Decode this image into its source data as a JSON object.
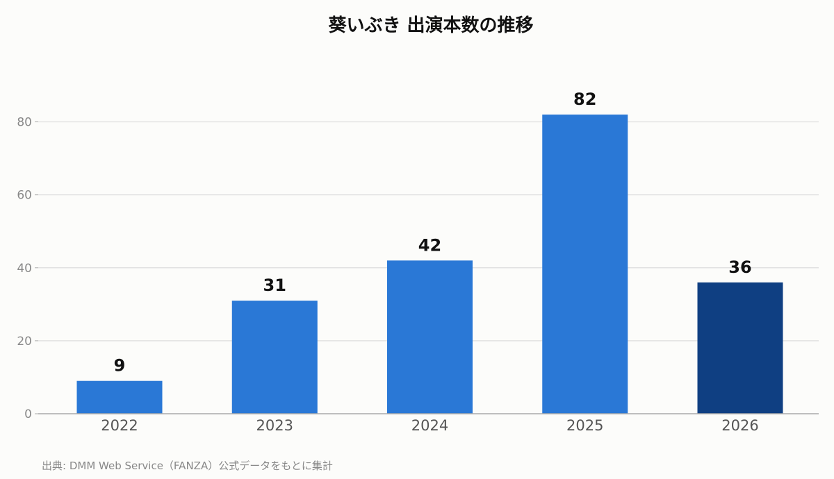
{
  "chart_data": {
    "type": "bar",
    "title": "葵いぶき 出演本数の推移",
    "xlabel": "",
    "ylabel": "",
    "categories": [
      "2022",
      "2023",
      "2024",
      "2025",
      "2026"
    ],
    "values": [
      9,
      31,
      42,
      82,
      36
    ],
    "data_labels": [
      "9",
      "31",
      "42",
      "82",
      "36"
    ],
    "ylim": [
      0,
      90
    ],
    "yticks": [
      0,
      20,
      40,
      60,
      80
    ],
    "grid": true,
    "legend": "none",
    "colors": {
      "bar": "#2a78d6",
      "highlight": "#0f3f82",
      "grid": "#dddddd",
      "axis": "#aaaaaa"
    },
    "highlight_index": 4,
    "source": "出典: DMM Web Service（FANZA）公式データをもとに集計"
  }
}
